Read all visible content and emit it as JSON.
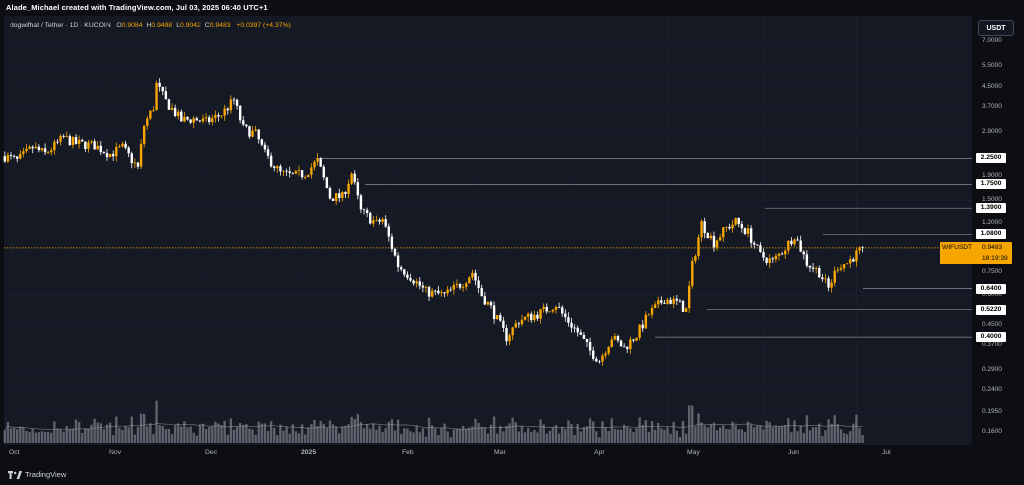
{
  "header": {
    "creator_text": "Alade_Michael created with TradingView.com, Jul 03, 2025 06:40 UTC+1",
    "symbol": "dogwifhat / Tether · 1D · KUCOIN",
    "ohlc": [
      {
        "label": "O",
        "value": "0.9084"
      },
      {
        "label": "H",
        "value": "0.9498"
      },
      {
        "label": "L",
        "value": "0.9042"
      },
      {
        "label": "C",
        "value": "0.9483"
      }
    ],
    "change": "+0.0397 (+4.37%)",
    "currency_button": "USDT"
  },
  "price_badge": {
    "symbol": "WIFUSDT",
    "price": "0.9483",
    "countdown": "18:19:39"
  },
  "footer": {
    "brand": "TradingView"
  },
  "colors": {
    "up": "#f7a600",
    "down": "#ffffff",
    "level_line": "#6f7280",
    "current_line": "#f7a600",
    "volume": "#787b86"
  },
  "chart_data": {
    "type": "candlestick",
    "scale": "log",
    "ylim": [
      0.14,
      7.0
    ],
    "y_ticks": [
      "7.0000",
      "5.5000",
      "4.5000",
      "3.7000",
      "2.9000",
      "1.9000",
      "1.5000",
      "1.2000",
      "0.7500",
      "0.6000",
      "0.4500",
      "0.3700",
      "0.2900",
      "0.2400",
      "0.1950",
      "0.1600"
    ],
    "x_ticks": [
      "Oct",
      "Nov",
      "Dec",
      "2025",
      "Feb",
      "Mar",
      "Apr",
      "May",
      "Jun",
      "Jul"
    ],
    "levels": [
      {
        "value": 2.25,
        "label": "2.2500"
      },
      {
        "value": 1.75,
        "label": "1.7500"
      },
      {
        "value": 1.39,
        "label": "1.3900"
      },
      {
        "value": 1.08,
        "label": "1.0800"
      },
      {
        "value": 0.64,
        "label": "0.6400"
      },
      {
        "value": 0.522,
        "label": "0.5220"
      },
      {
        "value": 0.4,
        "label": "0.4000"
      }
    ],
    "current_price": 0.9483,
    "close_path": [
      [
        "2024-09-29",
        2.3
      ],
      [
        "2024-10-03",
        2.2
      ],
      [
        "2024-10-08",
        2.5
      ],
      [
        "2024-10-12",
        2.35
      ],
      [
        "2024-10-18",
        2.75
      ],
      [
        "2024-10-22",
        2.6
      ],
      [
        "2024-10-28",
        2.55
      ],
      [
        "2024-11-02",
        2.35
      ],
      [
        "2024-11-06",
        2.5
      ],
      [
        "2024-11-11",
        2.05
      ],
      [
        "2024-11-13",
        3.1
      ],
      [
        "2024-11-16",
        3.7
      ],
      [
        "2024-11-17",
        4.6
      ],
      [
        "2024-11-20",
        3.9
      ],
      [
        "2024-11-25",
        3.25
      ],
      [
        "2024-11-29",
        3.3
      ],
      [
        "2024-12-03",
        3.2
      ],
      [
        "2024-12-08",
        3.45
      ],
      [
        "2024-12-12",
        3.95
      ],
      [
        "2024-12-15",
        3.0
      ],
      [
        "2024-12-19",
        2.85
      ],
      [
        "2024-12-22",
        2.35
      ],
      [
        "2024-12-27",
        1.95
      ],
      [
        "2024-12-31",
        1.9
      ],
      [
        "2025-01-04",
        1.95
      ],
      [
        "2025-01-08",
        2.2
      ],
      [
        "2025-01-12",
        1.55
      ],
      [
        "2025-01-16",
        1.55
      ],
      [
        "2025-01-19",
        1.95
      ],
      [
        "2025-01-22",
        1.35
      ],
      [
        "2025-01-27",
        1.2
      ],
      [
        "2025-01-29",
        1.25
      ],
      [
        "2025-02-03",
        0.8
      ],
      [
        "2025-02-07",
        0.72
      ],
      [
        "2025-02-12",
        0.62
      ],
      [
        "2025-02-18",
        0.6
      ],
      [
        "2025-02-24",
        0.68
      ],
      [
        "2025-02-27",
        0.75
      ],
      [
        "2025-03-02",
        0.6
      ],
      [
        "2025-03-05",
        0.53
      ],
      [
        "2025-03-10",
        0.4
      ],
      [
        "2025-03-14",
        0.47
      ],
      [
        "2025-03-20",
        0.5
      ],
      [
        "2025-03-26",
        0.55
      ],
      [
        "2025-03-28",
        0.5
      ],
      [
        "2025-04-02",
        0.42
      ],
      [
        "2025-04-06",
        0.35
      ],
      [
        "2025-04-09",
        0.32
      ],
      [
        "2025-04-13",
        0.4
      ],
      [
        "2025-04-17",
        0.36
      ],
      [
        "2025-04-21",
        0.41
      ],
      [
        "2025-04-25",
        0.5
      ],
      [
        "2025-04-30",
        0.58
      ],
      [
        "2025-05-04",
        0.56
      ],
      [
        "2025-05-07",
        0.52
      ],
      [
        "2025-05-09",
        0.8
      ],
      [
        "2025-05-12",
        1.2
      ],
      [
        "2025-05-16",
        1.0
      ],
      [
        "2025-05-20",
        1.15
      ],
      [
        "2025-05-23",
        1.22
      ],
      [
        "2025-05-27",
        1.1
      ],
      [
        "2025-05-31",
        0.88
      ],
      [
        "2025-06-04",
        0.83
      ],
      [
        "2025-06-08",
        0.95
      ],
      [
        "2025-06-11",
        1.08
      ],
      [
        "2025-06-15",
        0.82
      ],
      [
        "2025-06-19",
        0.75
      ],
      [
        "2025-06-22",
        0.64
      ],
      [
        "2025-06-25",
        0.8
      ],
      [
        "2025-06-28",
        0.82
      ],
      [
        "2025-07-03",
        0.9483
      ]
    ]
  }
}
